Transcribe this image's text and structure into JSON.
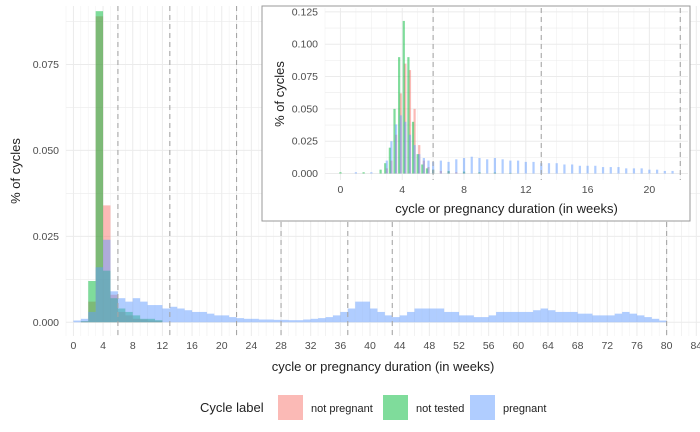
{
  "chart_data": [
    {
      "id": "main",
      "type": "histogram",
      "xlabel": "cycle or pregnancy duration (in weeks)",
      "ylabel": "% of cycles",
      "xlim": [
        -1,
        84.5
      ],
      "ylim": [
        -0.004,
        0.092
      ],
      "x_ticks": [
        0,
        4,
        8,
        12,
        16,
        20,
        24,
        28,
        32,
        36,
        40,
        44,
        48,
        52,
        56,
        60,
        64,
        68,
        72,
        76,
        80,
        84
      ],
      "x_tick_labels": [
        "0",
        "4",
        "8",
        "12",
        "16",
        "20",
        "24",
        "28",
        "32",
        "36",
        "40",
        "44",
        "48",
        "52",
        "56",
        "60",
        "64",
        "68",
        "72",
        "76",
        "80",
        "84"
      ],
      "y_ticks": [
        0,
        0.025,
        0.05,
        0.075
      ],
      "y_tick_labels": [
        "0.000",
        "0.025",
        "0.050",
        "0.075"
      ],
      "vlines": [
        6,
        13,
        22,
        28,
        37,
        43,
        80
      ],
      "grid": true,
      "bin_width": 1,
      "series": [
        {
          "name": "not pregnant",
          "color": "#F8766D",
          "bins": [
            [
              1.5,
              0.0003
            ],
            [
              2.5,
              0.006
            ],
            [
              3.5,
              0.089
            ],
            [
              4.5,
              0.034
            ],
            [
              5.5,
              0.008
            ],
            [
              6.5,
              0.003
            ],
            [
              7.5,
              0.002
            ],
            [
              8.5,
              0.001
            ],
            [
              9.5,
              0.0008
            ],
            [
              10.5,
              0.0005
            ],
            [
              11.5,
              0.0004
            ]
          ]
        },
        {
          "name": "not tested",
          "color": "#00BA38",
          "bins": [
            [
              1.5,
              0.0003
            ],
            [
              2.5,
              0.012
            ],
            [
              3.5,
              0.0905
            ],
            [
              4.5,
              0.015
            ],
            [
              5.5,
              0.007
            ],
            [
              6.5,
              0.004
            ],
            [
              7.5,
              0.003
            ],
            [
              8.5,
              0.002
            ],
            [
              9.5,
              0.001
            ],
            [
              10.5,
              0.001
            ],
            [
              11.5,
              0.0006
            ]
          ]
        },
        {
          "name": "pregnant",
          "color": "#619CFF",
          "bins": [
            [
              0.5,
              0.0005
            ],
            [
              1.5,
              0.001
            ],
            [
              2.5,
              0.003
            ],
            [
              3.5,
              0.016
            ],
            [
              4.5,
              0.024
            ],
            [
              5.5,
              0.009
            ],
            [
              6.5,
              0.007
            ],
            [
              7.5,
              0.006
            ],
            [
              8.5,
              0.007
            ],
            [
              9.5,
              0.006
            ],
            [
              10.5,
              0.005
            ],
            [
              11.5,
              0.005
            ],
            [
              12.5,
              0.004
            ],
            [
              13.5,
              0.0045
            ],
            [
              14.5,
              0.004
            ],
            [
              15.5,
              0.0035
            ],
            [
              16.5,
              0.003
            ],
            [
              17.5,
              0.003
            ],
            [
              18.5,
              0.0025
            ],
            [
              19.5,
              0.002
            ],
            [
              20.5,
              0.002
            ],
            [
              21.5,
              0.0015
            ],
            [
              22.5,
              0.0012
            ],
            [
              23.5,
              0.001
            ],
            [
              24.5,
              0.001
            ],
            [
              25.5,
              0.0008
            ],
            [
              26.5,
              0.0008
            ],
            [
              27.5,
              0.0007
            ],
            [
              28.5,
              0.0007
            ],
            [
              29.5,
              0.0006
            ],
            [
              30.5,
              0.0006
            ],
            [
              31.5,
              0.0008
            ],
            [
              32.5,
              0.001
            ],
            [
              33.5,
              0.0012
            ],
            [
              34.5,
              0.0015
            ],
            [
              35.5,
              0.002
            ],
            [
              36.5,
              0.003
            ],
            [
              37.5,
              0.004
            ],
            [
              38.5,
              0.006
            ],
            [
              39.5,
              0.006
            ],
            [
              40.5,
              0.004
            ],
            [
              41.5,
              0.003
            ],
            [
              42.5,
              0.002
            ],
            [
              43.5,
              0.0015
            ],
            [
              44.5,
              0.002
            ],
            [
              45.5,
              0.003
            ],
            [
              46.5,
              0.004
            ],
            [
              47.5,
              0.004
            ],
            [
              48.5,
              0.004
            ],
            [
              49.5,
              0.004
            ],
            [
              50.5,
              0.003
            ],
            [
              51.5,
              0.003
            ],
            [
              52.5,
              0.002
            ],
            [
              53.5,
              0.002
            ],
            [
              54.5,
              0.0015
            ],
            [
              55.5,
              0.0015
            ],
            [
              56.5,
              0.002
            ],
            [
              57.5,
              0.003
            ],
            [
              58.5,
              0.003
            ],
            [
              59.5,
              0.003
            ],
            [
              60.5,
              0.003
            ],
            [
              61.5,
              0.003
            ],
            [
              62.5,
              0.0035
            ],
            [
              63.5,
              0.004
            ],
            [
              64.5,
              0.0035
            ],
            [
              65.5,
              0.003
            ],
            [
              66.5,
              0.003
            ],
            [
              67.5,
              0.003
            ],
            [
              68.5,
              0.0025
            ],
            [
              69.5,
              0.0025
            ],
            [
              70.5,
              0.002
            ],
            [
              71.5,
              0.002
            ],
            [
              72.5,
              0.002
            ],
            [
              73.5,
              0.0025
            ],
            [
              74.5,
              0.003
            ],
            [
              75.5,
              0.0025
            ],
            [
              76.5,
              0.002
            ],
            [
              77.5,
              0.0015
            ],
            [
              78.5,
              0.001
            ],
            [
              79.5,
              0.0005
            ]
          ]
        }
      ]
    },
    {
      "id": "inset",
      "type": "histogram",
      "xlabel": "cycle or pregnancy duration (in weeks)",
      "ylabel": "% of cycles",
      "xlim": [
        -1,
        22.5
      ],
      "ylim": [
        -0.005,
        0.128
      ],
      "x_ticks": [
        0,
        4,
        8,
        12,
        16,
        20
      ],
      "x_tick_labels": [
        "0",
        "4",
        "8",
        "12",
        "16",
        "20"
      ],
      "y_ticks": [
        0,
        0.025,
        0.05,
        0.075,
        0.1,
        0.125
      ],
      "y_tick_labels": [
        "0.000",
        "0.025",
        "0.050",
        "0.075",
        "0.100",
        "0.125"
      ],
      "vlines": [
        6,
        13,
        22
      ],
      "grid": true,
      "bin_width": 0.1429,
      "series": [
        {
          "name": "not pregnant",
          "color": "#F8766D",
          "bins": [
            [
              3.0,
              0.004
            ],
            [
              3.3,
              0.01
            ],
            [
              3.6,
              0.03
            ],
            [
              3.9,
              0.062
            ],
            [
              4.2,
              0.085
            ],
            [
              4.5,
              0.08
            ],
            [
              4.8,
              0.05
            ],
            [
              5.1,
              0.022
            ],
            [
              5.4,
              0.01
            ],
            [
              5.7,
              0.005
            ],
            [
              6.0,
              0.003
            ],
            [
              6.5,
              0.002
            ],
            [
              7.0,
              0.0015
            ],
            [
              7.5,
              0.001
            ],
            [
              8.0,
              0.0008
            ],
            [
              9.0,
              0.0005
            ],
            [
              10.0,
              0.0004
            ],
            [
              11.0,
              0.0003
            ]
          ]
        },
        {
          "name": "not tested",
          "color": "#00BA38",
          "bins": [
            [
              0.0,
              0.001
            ],
            [
              1.5,
              0.001
            ],
            [
              2.6,
              0.003
            ],
            [
              2.9,
              0.008
            ],
            [
              3.2,
              0.02
            ],
            [
              3.5,
              0.05
            ],
            [
              3.8,
              0.09
            ],
            [
              4.1,
              0.118
            ],
            [
              4.4,
              0.09
            ],
            [
              4.7,
              0.04
            ],
            [
              5.0,
              0.015
            ],
            [
              5.3,
              0.007
            ],
            [
              5.6,
              0.004
            ],
            [
              6.0,
              0.003
            ],
            [
              7.0,
              0.002
            ],
            [
              8.0,
              0.0015
            ],
            [
              9.0,
              0.001
            ],
            [
              10.0,
              0.0008
            ],
            [
              11.0,
              0.0005
            ]
          ]
        },
        {
          "name": "pregnant",
          "color": "#619CFF",
          "bins": [
            [
              1.0,
              0.001
            ],
            [
              2.0,
              0.001
            ],
            [
              3.0,
              0.01
            ],
            [
              3.3,
              0.025
            ],
            [
              3.6,
              0.038
            ],
            [
              3.9,
              0.045
            ],
            [
              4.2,
              0.04
            ],
            [
              4.5,
              0.03
            ],
            [
              4.8,
              0.022
            ],
            [
              5.1,
              0.015
            ],
            [
              5.4,
              0.012
            ],
            [
              5.7,
              0.01
            ],
            [
              6.0,
              0.009
            ],
            [
              6.5,
              0.01
            ],
            [
              7.0,
              0.009
            ],
            [
              7.5,
              0.011
            ],
            [
              8.0,
              0.012
            ],
            [
              8.5,
              0.013
            ],
            [
              9.0,
              0.012
            ],
            [
              9.5,
              0.011
            ],
            [
              10.0,
              0.012
            ],
            [
              10.5,
              0.011
            ],
            [
              11.0,
              0.01
            ],
            [
              11.5,
              0.01
            ],
            [
              12.0,
              0.009
            ],
            [
              12.5,
              0.009
            ],
            [
              13.0,
              0.008
            ],
            [
              13.5,
              0.008
            ],
            [
              14.0,
              0.008
            ],
            [
              14.5,
              0.007
            ],
            [
              15.0,
              0.007
            ],
            [
              15.5,
              0.006
            ],
            [
              16.0,
              0.006
            ],
            [
              16.5,
              0.006
            ],
            [
              17.0,
              0.005
            ],
            [
              17.5,
              0.005
            ],
            [
              18.0,
              0.005
            ],
            [
              18.5,
              0.004
            ],
            [
              19.0,
              0.004
            ],
            [
              19.5,
              0.004
            ],
            [
              20.0,
              0.003
            ],
            [
              20.5,
              0.003
            ],
            [
              21.0,
              0.002
            ],
            [
              21.5,
              0.002
            ]
          ]
        }
      ]
    }
  ],
  "legend": {
    "title": "Cycle label",
    "position": "bottom",
    "items": [
      {
        "label": "not pregnant",
        "color": "#F8766D"
      },
      {
        "label": "not tested",
        "color": "#00BA38"
      },
      {
        "label": "pregnant",
        "color": "#619CFF"
      }
    ]
  }
}
